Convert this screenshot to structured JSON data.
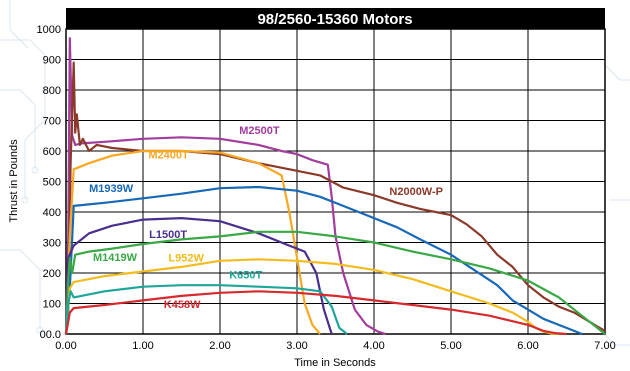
{
  "chart_data": {
    "type": "line",
    "title": "98/2560-15360 Motors",
    "xlabel": "Time in Seconds",
    "ylabel": "Thrust in Pounds",
    "xlim": [
      0,
      7
    ],
    "ylim": [
      0,
      1000
    ],
    "x_ticks": [
      "0.00",
      "1.00",
      "2.00",
      "3.00",
      "4.00",
      "5.00",
      "6.00",
      "7.00"
    ],
    "y_ticks": [
      "00.0",
      "100",
      "200",
      "300",
      "400",
      "500",
      "600",
      "700",
      "800",
      "900",
      "1000"
    ],
    "grid": true,
    "series": [
      {
        "name": "M2500T",
        "color": "#a23c9d",
        "x": [
          0.0,
          0.03,
          0.05,
          0.08,
          0.12,
          0.2,
          0.5,
          1.0,
          1.5,
          2.0,
          2.5,
          2.8,
          3.0,
          3.2,
          3.4,
          3.45,
          3.5,
          3.6,
          3.75,
          3.9,
          4.05,
          4.15
        ],
        "y": [
          0,
          320,
          970,
          650,
          620,
          625,
          630,
          640,
          645,
          640,
          620,
          600,
          590,
          570,
          555,
          450,
          320,
          200,
          80,
          30,
          8,
          0
        ]
      },
      {
        "name": "N2000W-P",
        "color": "#8b3a2a",
        "x": [
          0.0,
          0.03,
          0.06,
          0.1,
          0.12,
          0.14,
          0.18,
          0.22,
          0.3,
          0.4,
          0.6,
          1.0,
          1.5,
          2.0,
          2.5,
          3.0,
          3.3,
          3.6,
          4.0,
          4.3,
          4.6,
          4.8,
          5.0,
          5.2,
          5.4,
          5.6,
          5.8,
          6.0,
          6.2,
          6.4,
          6.6,
          6.8,
          6.9,
          7.0
        ],
        "y": [
          0,
          80,
          560,
          890,
          660,
          720,
          620,
          640,
          600,
          620,
          610,
          600,
          600,
          590,
          560,
          535,
          520,
          480,
          455,
          430,
          410,
          400,
          390,
          360,
          320,
          260,
          220,
          160,
          120,
          90,
          70,
          40,
          25,
          10
        ]
      },
      {
        "name": "M2400T",
        "color": "#f7a823",
        "x": [
          0.0,
          0.05,
          0.1,
          0.3,
          0.6,
          1.0,
          1.5,
          2.0,
          2.5,
          2.8,
          2.9,
          3.0,
          3.1,
          3.2,
          3.3
        ],
        "y": [
          0,
          320,
          540,
          560,
          585,
          600,
          600,
          595,
          560,
          520,
          400,
          250,
          100,
          30,
          0
        ]
      },
      {
        "name": "M1939W",
        "color": "#1769b8",
        "x": [
          0.0,
          0.05,
          0.1,
          0.5,
          1.0,
          1.5,
          2.0,
          2.5,
          3.0,
          3.3,
          3.6,
          4.0,
          4.3,
          4.6,
          5.0,
          5.3,
          5.6,
          5.8,
          6.0,
          6.2,
          6.4,
          6.6,
          6.7
        ],
        "y": [
          0,
          150,
          420,
          430,
          445,
          460,
          478,
          482,
          470,
          450,
          420,
          380,
          350,
          310,
          260,
          210,
          160,
          110,
          80,
          50,
          30,
          10,
          0
        ]
      },
      {
        "name": "L1500T",
        "color": "#4b2f8e",
        "x": [
          0.0,
          0.03,
          0.1,
          0.3,
          0.6,
          1.0,
          1.5,
          2.0,
          2.5,
          2.9,
          3.1,
          3.25,
          3.35,
          3.45
        ],
        "y": [
          0,
          250,
          290,
          330,
          355,
          375,
          380,
          370,
          330,
          290,
          270,
          200,
          80,
          0
        ]
      },
      {
        "name": "M1419W",
        "color": "#3aa846",
        "x": [
          0.0,
          0.03,
          0.05,
          0.08,
          0.12,
          0.3,
          0.6,
          1.0,
          1.5,
          2.0,
          2.5,
          3.0,
          3.5,
          4.0,
          4.5,
          5.0,
          5.5,
          6.0,
          6.4,
          6.7,
          6.9,
          7.0
        ],
        "y": [
          0,
          180,
          250,
          200,
          260,
          270,
          280,
          295,
          310,
          320,
          335,
          335,
          320,
          300,
          270,
          245,
          215,
          175,
          120,
          60,
          20,
          0
        ]
      },
      {
        "name": "L952W",
        "color": "#f2bc1c",
        "x": [
          0.0,
          0.05,
          0.1,
          0.5,
          1.0,
          1.5,
          2.0,
          2.5,
          3.0,
          3.5,
          4.0,
          4.5,
          5.0,
          5.5,
          5.8,
          6.0,
          6.1,
          6.2,
          6.3,
          6.4
        ],
        "y": [
          0,
          150,
          170,
          190,
          205,
          220,
          240,
          245,
          240,
          230,
          210,
          180,
          140,
          100,
          70,
          40,
          20,
          8,
          2,
          0
        ]
      },
      {
        "name": "K650T",
        "color": "#1fa69b",
        "x": [
          0.0,
          0.03,
          0.06,
          0.1,
          0.5,
          1.0,
          1.5,
          2.0,
          2.5,
          3.0,
          3.3,
          3.45,
          3.55,
          3.65
        ],
        "y": [
          0,
          100,
          140,
          120,
          140,
          155,
          160,
          160,
          155,
          150,
          140,
          90,
          20,
          0
        ]
      },
      {
        "name": "K458W",
        "color": "#d62a2f",
        "x": [
          0.0,
          0.05,
          0.1,
          0.5,
          1.0,
          1.5,
          2.0,
          2.5,
          3.0,
          3.5,
          4.0,
          4.5,
          5.0,
          5.5,
          6.0,
          6.2,
          6.35,
          6.5
        ],
        "y": [
          0,
          70,
          85,
          95,
          110,
          125,
          135,
          140,
          135,
          125,
          110,
          95,
          80,
          60,
          30,
          10,
          3,
          0
        ]
      }
    ],
    "labels": [
      {
        "text": "M2500T",
        "x": 2.25,
        "y": 655,
        "color": "#a23c9d"
      },
      {
        "text": "M2400T",
        "x": 1.07,
        "y": 575,
        "color": "#f7a823"
      },
      {
        "text": "M1939W",
        "x": 0.3,
        "y": 465,
        "color": "#1769b8"
      },
      {
        "text": "N2000W-P",
        "x": 4.2,
        "y": 455,
        "color": "#8b3a2a"
      },
      {
        "text": "L1500T",
        "x": 1.08,
        "y": 315,
        "color": "#4b2f8e"
      },
      {
        "text": "M1419W",
        "x": 0.35,
        "y": 240,
        "color": "#3aa846"
      },
      {
        "text": "L952W",
        "x": 1.33,
        "y": 237,
        "color": "#f2bc1c"
      },
      {
        "text": "K650T",
        "x": 2.12,
        "y": 182,
        "color": "#1fa69b"
      },
      {
        "text": "K458W",
        "x": 1.27,
        "y": 85,
        "color": "#d62a2f"
      }
    ]
  }
}
